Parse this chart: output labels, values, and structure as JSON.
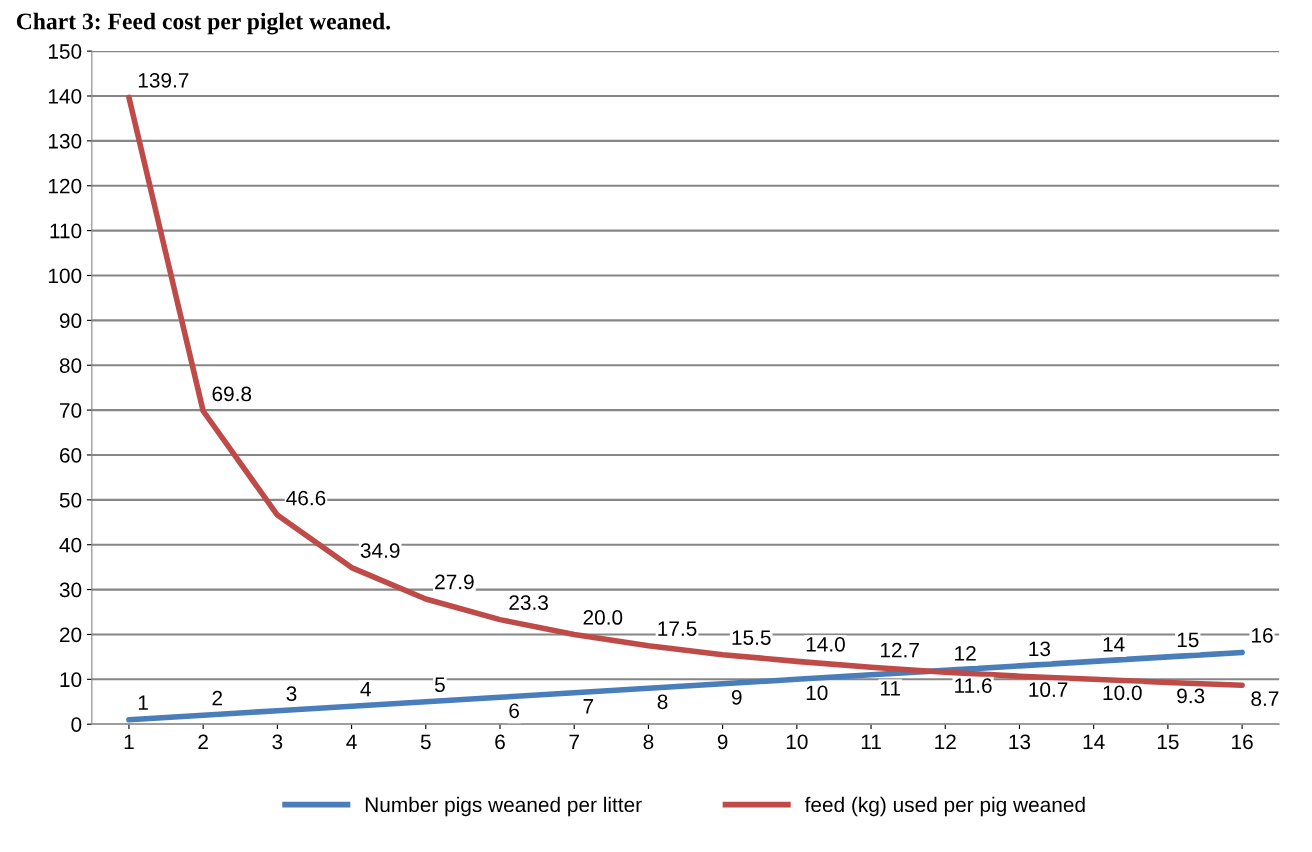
{
  "chart_data": {
    "type": "line",
    "title": "Chart 3: Feed cost per piglet weaned.",
    "categories": [
      "1",
      "2",
      "3",
      "4",
      "5",
      "6",
      "7",
      "8",
      "9",
      "10",
      "11",
      "12",
      "13",
      "14",
      "15",
      "16"
    ],
    "series": [
      {
        "name": "Number pigs weaned per litter",
        "color": "#4a7ebb",
        "values": [
          1,
          2,
          3,
          4,
          5,
          6,
          7,
          8,
          9,
          10,
          11,
          12,
          13,
          14,
          15,
          16
        ]
      },
      {
        "name": "feed (kg) used per pig weaned",
        "color": "#be4b48",
        "values": [
          139.7,
          69.8,
          46.6,
          34.9,
          27.9,
          23.3,
          20.0,
          17.5,
          15.5,
          14.0,
          12.7,
          11.6,
          10.7,
          10.0,
          9.3,
          8.7
        ],
        "value_labels": [
          "139.7",
          "69.8",
          "46.6",
          "34.9",
          "27.9",
          "23.3",
          "20.0",
          "17.5",
          "15.5",
          "14.0",
          "12.7",
          "11.6",
          "10.7",
          "10.0",
          "9.3",
          "8.7"
        ]
      }
    ],
    "data_labels": true,
    "ylim": [
      0,
      150
    ],
    "yticks": [
      0,
      10,
      20,
      30,
      40,
      50,
      60,
      70,
      80,
      90,
      100,
      110,
      120,
      130,
      140,
      150
    ],
    "grid": "y",
    "legend": "bottom",
    "marker": "none",
    "line_style": "solid"
  }
}
